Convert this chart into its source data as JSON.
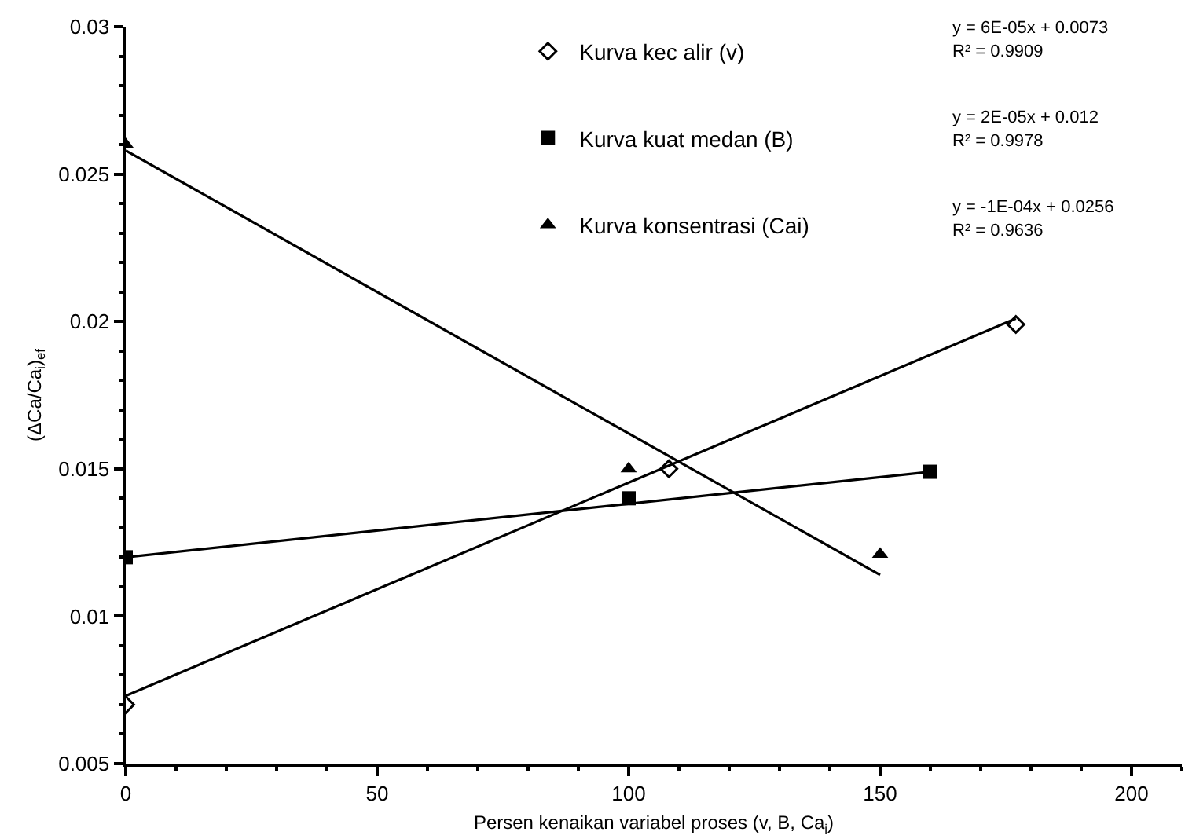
{
  "chart_data": {
    "type": "scatter",
    "xlabel": "Persen kenaikan variabel proses (v, B, Ca$_{i}$)",
    "ylabel": "(ΔCa/Ca$_{i}$)$_{ef}$",
    "xlim": [
      0,
      210
    ],
    "xticks": [
      0,
      50,
      100,
      150,
      200
    ],
    "ylim": [
      0.005,
      0.03
    ],
    "yticks": [
      0.005,
      0.01,
      0.015,
      0.02,
      0.025,
      0.03
    ],
    "grid": false,
    "legend": "top right",
    "series": [
      {
        "name": "Kurva kec alir (v)",
        "color": "#000000",
        "marker": "diamond",
        "x": [
          0,
          108,
          177
        ],
        "values": [
          0.007,
          0.015,
          0.0199
        ]
      },
      {
        "name": "Kurva kuat medan (B)",
        "color": "#000000",
        "marker": "square",
        "x": [
          0,
          100,
          160
        ],
        "values": [
          0.012,
          0.014,
          0.0149
        ]
      },
      {
        "name": "Kurva konsentrasi (Cai)",
        "color": "#000000",
        "marker": "triangle",
        "x": [
          0,
          100,
          150
        ],
        "values": [
          0.026,
          0.015,
          0.0121
        ]
      },
      {
        "type": "line",
        "color": "#000000",
        "x": [
          0,
          177
        ],
        "values": [
          0.0073,
          0.0201
        ]
      },
      {
        "type": "line",
        "color": "#000000",
        "x": [
          0,
          160
        ],
        "values": [
          0.012,
          0.0149
        ]
      },
      {
        "type": "line",
        "color": "#000000",
        "x": [
          0,
          150
        ],
        "values": [
          0.0258,
          0.0114
        ]
      }
    ],
    "annotations": [
      "y = 6E-05x + 0.0073",
      "R² = 0.9909",
      "y = 2E-05x + 0.012",
      "R² = 0.9978",
      "y = -1E-04x + 0.0256",
      "R² = 0.9636"
    ]
  }
}
